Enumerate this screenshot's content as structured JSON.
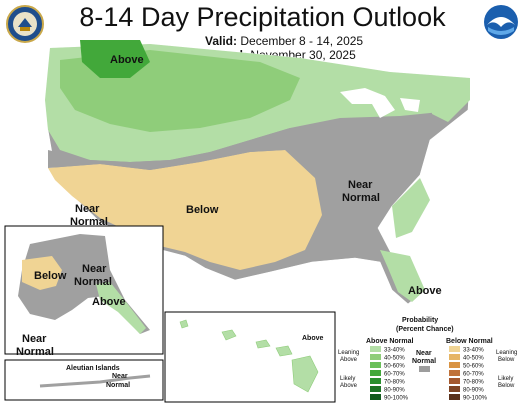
{
  "header": {
    "title": "8-14 Day Precipitation Outlook",
    "valid_label": "Valid:",
    "valid_value": "December 8 - 14, 2025",
    "issued_label": "Issued:",
    "issued_value": "November 30, 2025"
  },
  "logos": {
    "left": "doc-seal",
    "right": "noaa"
  },
  "regions": {
    "above_north": "Above",
    "below_southwest": "Below",
    "near_normal_east_line1": "Near",
    "near_normal_east_line2": "Normal",
    "near_normal_west_line1": "Near",
    "near_normal_west_line2": "Normal",
    "above_florida": "Above"
  },
  "alaska": {
    "below": "Below",
    "near_line1": "Near",
    "near_line2": "Normal",
    "above": "Above",
    "near_sw_line1": "Near",
    "near_sw_line2": "Normal",
    "aleutian_title": "Aleutian Islands",
    "aleutian_near_line1": "Near",
    "aleutian_near_line2": "Normal"
  },
  "hawaii": {
    "above": "Above"
  },
  "legend": {
    "title_line1": "Probability",
    "title_line2": "(Percent Chance)",
    "above_header": "Above Normal",
    "below_header": "Below Normal",
    "near_header_line1": "Near",
    "near_header_line2": "Normal",
    "leaning_above_line1": "Leaning",
    "leaning_above_line2": "Above",
    "likely_above_line1": "Likely",
    "likely_above_line2": "Above",
    "leaning_below_line1": "Leaning",
    "leaning_below_line2": "Below",
    "likely_below_line1": "Likely",
    "likely_below_line2": "Below",
    "bins": [
      "33-40%",
      "40-50%",
      "50-60%",
      "60-70%",
      "70-80%",
      "80-90%",
      "90-100%"
    ],
    "above_colors": [
      "#b3dea6",
      "#8fcd7a",
      "#6abf59",
      "#42a83a",
      "#2a8f2e",
      "#1d7325",
      "#115a1c"
    ],
    "below_colors": [
      "#f0d494",
      "#e6b564",
      "#d99343",
      "#c0723a",
      "#a4582e",
      "#7f4424",
      "#5b311b"
    ],
    "near_color": "#9d9d9d"
  }
}
